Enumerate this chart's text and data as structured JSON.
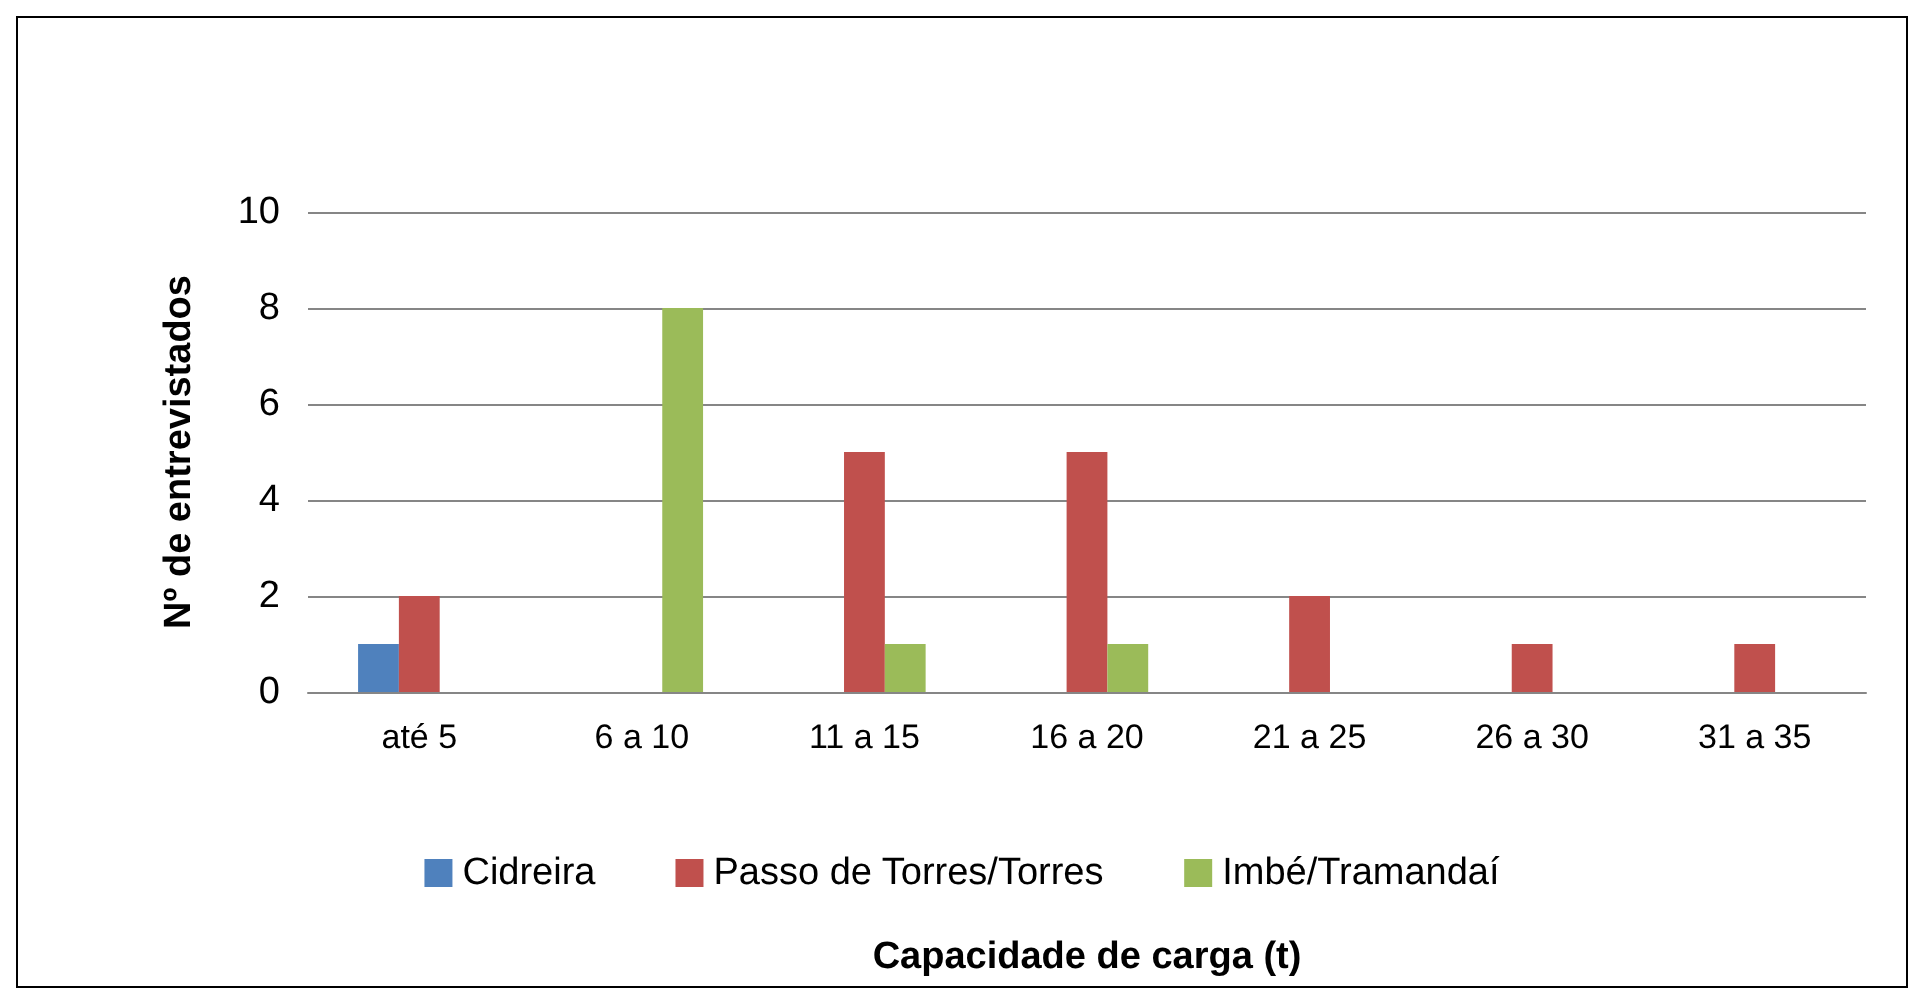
{
  "chart_data": {
    "type": "bar",
    "xlabel": "Capacidade de carga (t)",
    "ylabel": "Nº de entrevistados",
    "categories": [
      "até 5",
      "6 a 10",
      "11 a 15",
      "16 a 20",
      "21 a 25",
      "26 a 30",
      "31 a 35"
    ],
    "series": [
      {
        "name": "Cidreira",
        "color": "#4f81bd",
        "values": [
          1,
          0,
          0,
          0,
          0,
          0,
          0
        ]
      },
      {
        "name": "Passo de Torres/Torres",
        "color": "#c0504d",
        "values": [
          2,
          0,
          5,
          5,
          2,
          1,
          1
        ]
      },
      {
        "name": "Imbé/Tramandaí",
        "color": "#9bbb59",
        "values": [
          0,
          8,
          1,
          1,
          0,
          0,
          0
        ]
      }
    ],
    "ylim": [
      0,
      10
    ],
    "yticks": [
      0,
      2,
      4,
      6,
      8,
      10
    ],
    "grid": "y",
    "legend": "bottom"
  }
}
